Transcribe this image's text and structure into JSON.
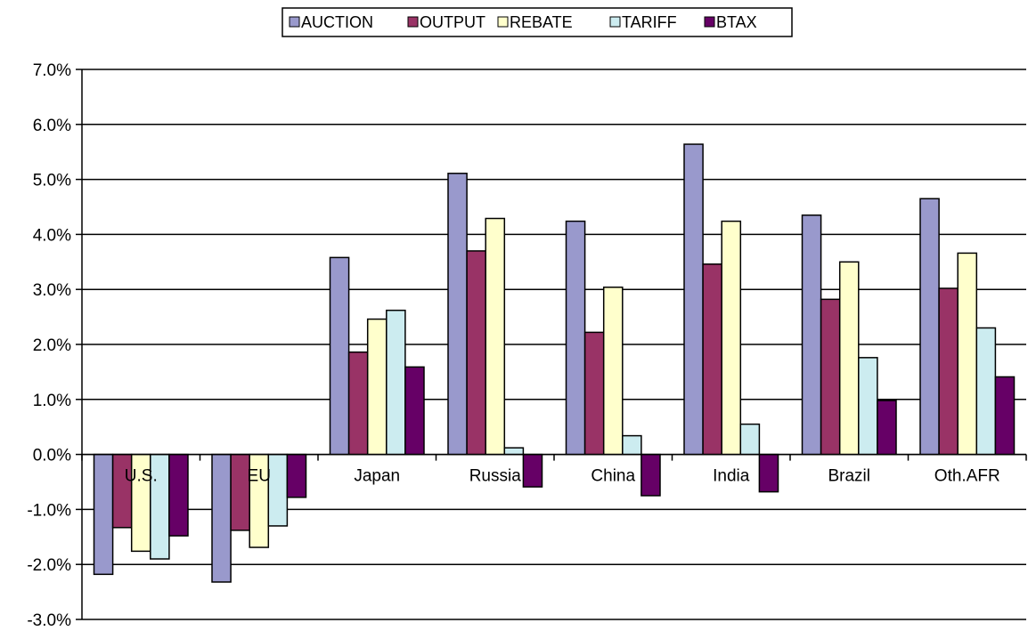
{
  "chart_data": {
    "type": "bar",
    "title": "",
    "xlabel": "",
    "ylabel": "",
    "ylim": [
      -0.03,
      0.07
    ],
    "ytick_step": 0.01,
    "ytick_format": "percent_1dp",
    "yticks": [
      "7.0%",
      "6.0%",
      "5.0%",
      "4.0%",
      "3.0%",
      "2.0%",
      "1.0%",
      "0.0%",
      "-1.0%",
      "-2.0%",
      "-3.0%"
    ],
    "grid": true,
    "legend_position": "top-center",
    "categories": [
      "U.S.",
      "EU",
      "Japan",
      "Russia",
      "China",
      "India",
      "Brazil",
      "Oth.AFR"
    ],
    "series": [
      {
        "name": "AUCTION",
        "color": "#9999cc",
        "values": [
          -0.0218,
          -0.0232,
          0.0358,
          0.0511,
          0.0424,
          0.0564,
          0.0435,
          0.0465
        ]
      },
      {
        "name": "OUTPUT",
        "color": "#993366",
        "values": [
          -0.0133,
          -0.0138,
          0.0186,
          0.037,
          0.0222,
          0.0346,
          0.0282,
          0.0302
        ]
      },
      {
        "name": "REBATE",
        "color": "#ffffcc",
        "values": [
          -0.0176,
          -0.0169,
          0.0246,
          0.0429,
          0.0304,
          0.0424,
          0.035,
          0.0366
        ]
      },
      {
        "name": "TARIFF",
        "color": "#ccecf0",
        "values": [
          -0.019,
          -0.013,
          0.0262,
          0.0012,
          0.0034,
          0.0055,
          0.0176,
          0.023
        ]
      },
      {
        "name": "BTAX",
        "color": "#660066",
        "values": [
          -0.0148,
          -0.0078,
          0.0159,
          -0.0059,
          -0.0075,
          -0.0068,
          0.0098,
          0.0141
        ]
      }
    ]
  }
}
